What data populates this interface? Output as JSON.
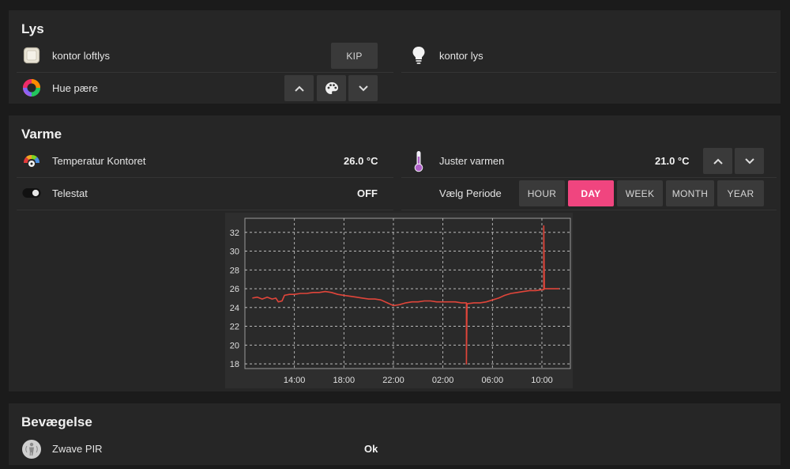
{
  "lys": {
    "title": "Lys",
    "kontor_loftlys": {
      "label": "kontor loftlys",
      "button": "KIP"
    },
    "kontor_lys": {
      "label": "kontor lys"
    },
    "hue": {
      "label": "Hue pære"
    }
  },
  "varme": {
    "title": "Varme",
    "temperatur": {
      "label": "Temperatur Kontoret",
      "value": "26.0 °C"
    },
    "juster": {
      "label": "Juster varmen",
      "value": "21.0 °C"
    },
    "telestat": {
      "label": "Telestat",
      "value": "OFF"
    },
    "periode": {
      "label": "Vælg Periode",
      "options": [
        "HOUR",
        "DAY",
        "WEEK",
        "MONTH",
        "YEAR"
      ],
      "selected": "DAY"
    }
  },
  "bevaegelse": {
    "title": "Bevægelse",
    "pir": {
      "label": "Zwave PIR",
      "value": "Ok"
    }
  },
  "colors": {
    "accent": "#f0457f",
    "line": "#e0453a",
    "panel": "#262626"
  },
  "chart_data": {
    "type": "line",
    "xlabel": "",
    "ylabel": "",
    "ylim": [
      17.5,
      33.5
    ],
    "yticks": [
      18,
      20,
      22,
      24,
      26,
      28,
      30,
      32
    ],
    "xlim": [
      10.0,
      36.3
    ],
    "xticks": [
      {
        "x": 14,
        "label": "14:00"
      },
      {
        "x": 18,
        "label": "18:00"
      },
      {
        "x": 22,
        "label": "22:00"
      },
      {
        "x": 26,
        "label": "02:00"
      },
      {
        "x": 30,
        "label": "06:00"
      },
      {
        "x": 34,
        "label": "10:00"
      }
    ],
    "grid": true,
    "series": [
      {
        "name": "",
        "color": "#e0453a",
        "points": [
          [
            10.6,
            25.0
          ],
          [
            11.0,
            25.1
          ],
          [
            11.4,
            24.9
          ],
          [
            11.8,
            25.1
          ],
          [
            12.2,
            24.9
          ],
          [
            12.5,
            25.0
          ],
          [
            12.7,
            24.6
          ],
          [
            13.0,
            24.7
          ],
          [
            13.2,
            25.3
          ],
          [
            13.6,
            25.4
          ],
          [
            14.0,
            25.4
          ],
          [
            14.5,
            25.5
          ],
          [
            15.0,
            25.5
          ],
          [
            15.5,
            25.6
          ],
          [
            16.0,
            25.6
          ],
          [
            16.5,
            25.7
          ],
          [
            17.0,
            25.6
          ],
          [
            17.5,
            25.4
          ],
          [
            18.0,
            25.3
          ],
          [
            18.5,
            25.2
          ],
          [
            19.0,
            25.1
          ],
          [
            19.5,
            25.0
          ],
          [
            20.0,
            24.9
          ],
          [
            20.5,
            24.9
          ],
          [
            21.0,
            24.8
          ],
          [
            21.5,
            24.5
          ],
          [
            22.0,
            24.2
          ],
          [
            22.5,
            24.3
          ],
          [
            23.0,
            24.5
          ],
          [
            23.5,
            24.6
          ],
          [
            24.0,
            24.6
          ],
          [
            24.5,
            24.7
          ],
          [
            25.0,
            24.7
          ],
          [
            25.5,
            24.6
          ],
          [
            26.0,
            24.6
          ],
          [
            26.5,
            24.6
          ],
          [
            27.0,
            24.6
          ],
          [
            27.5,
            24.5
          ],
          [
            27.9,
            24.5
          ],
          [
            27.9,
            18.0
          ],
          [
            27.95,
            24.4
          ],
          [
            28.5,
            24.5
          ],
          [
            29.0,
            24.5
          ],
          [
            29.5,
            24.6
          ],
          [
            30.0,
            24.8
          ],
          [
            30.5,
            25.0
          ],
          [
            31.0,
            25.3
          ],
          [
            31.5,
            25.5
          ],
          [
            32.0,
            25.6
          ],
          [
            32.5,
            25.7
          ],
          [
            33.0,
            25.8
          ],
          [
            33.5,
            25.8
          ],
          [
            34.0,
            25.9
          ],
          [
            34.15,
            25.9
          ],
          [
            34.15,
            32.7
          ],
          [
            34.2,
            26.0
          ],
          [
            34.6,
            26.0
          ],
          [
            35.0,
            26.0
          ],
          [
            35.4,
            26.0
          ]
        ]
      }
    ]
  }
}
